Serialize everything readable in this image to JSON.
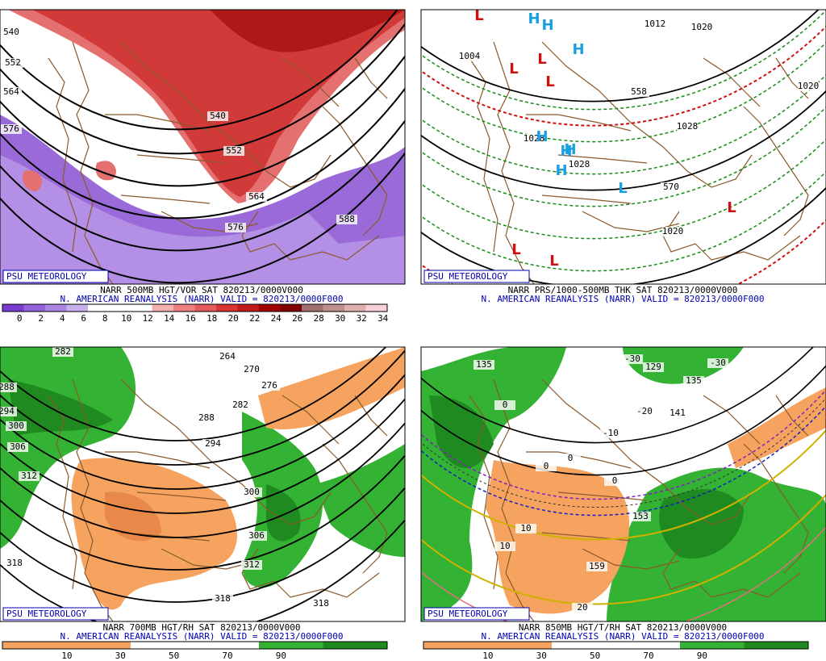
{
  "panels": [
    {
      "title": "NARR 500MB HGT/VOR SAT 820213/0000V000",
      "subtitle": "N. AMERICAN REANALYSIS (NARR) VALID = 820213/0000F000",
      "badge": "PSU METEOROLOGY",
      "colorbar": {
        "colors": [
          "#7a3ccf",
          "#9462db",
          "#ab86e4",
          "#c8b0ee",
          "#ffffff",
          "#ffffff",
          "#ffffff",
          "#f7b0b0",
          "#f08080",
          "#e55a5a",
          "#d83434",
          "#c01a1a",
          "#a00000",
          "#800000",
          "#a07070",
          "#c09090",
          "#e0b0b0",
          "#f8d0d8"
        ],
        "labels": [
          "0",
          "2",
          "4",
          "6",
          "8",
          "10",
          "12",
          "14",
          "16",
          "18",
          "20",
          "22",
          "24",
          "26",
          "28",
          "30",
          "32",
          "34"
        ]
      },
      "labels": [
        "540",
        "552",
        "564",
        "576",
        "540",
        "552",
        "564",
        "576",
        "588"
      ],
      "markers": []
    },
    {
      "title": "NARR PRS/1000-500MB THK SAT 820213/0000V000",
      "subtitle": "N. AMERICAN REANALYSIS (NARR) VALID = 820213/0000F000",
      "badge": "PSU METEOROLOGY",
      "labels": [
        "1012",
        "1020",
        "1004",
        "1028",
        "1028",
        "1020",
        "1028",
        "558",
        "570",
        "1020"
      ],
      "markers": [
        "L",
        "H",
        "H",
        "H",
        "L",
        "L",
        "L",
        "H",
        "H",
        "H",
        "H",
        "L",
        "L",
        "L",
        "L"
      ]
    },
    {
      "title": "NARR 700MB HGT/RH SAT 820213/0000V000",
      "subtitle": "N. AMERICAN REANALYSIS (NARR) VALID = 820213/0000F000",
      "badge": "PSU METEOROLOGY",
      "colorbar": {
        "colors": [
          "#f5a35f",
          "#f5a35f",
          "#ffffff",
          "#ffffff",
          "#33b233",
          "#1f8a1f"
        ],
        "labels": [
          "10",
          "30",
          "50",
          "70",
          "90"
        ]
      },
      "labels": [
        "282",
        "264",
        "270",
        "276",
        "282",
        "288",
        "294",
        "300",
        "306",
        "312",
        "318",
        "318",
        "312",
        "306",
        "300",
        "294",
        "288",
        "318"
      ],
      "markers": []
    },
    {
      "title": "NARR 850MB HGT/T/RH SAT 820213/0000V000",
      "subtitle": "N. AMERICAN REANALYSIS (NARR) VALID = 820213/0000F000",
      "badge": "PSU METEOROLOGY",
      "colorbar": {
        "colors": [
          "#f5a35f",
          "#f5a35f",
          "#ffffff",
          "#ffffff",
          "#33b233",
          "#1f8a1f"
        ],
        "labels": [
          "10",
          "30",
          "50",
          "70",
          "90"
        ]
      },
      "labels": [
        "135",
        "-30",
        "-30",
        "129",
        "135",
        "-20",
        "-10",
        "141",
        "0",
        "0",
        "0",
        "0",
        "10",
        "10",
        "153",
        "159",
        "20"
      ],
      "markers": []
    }
  ]
}
